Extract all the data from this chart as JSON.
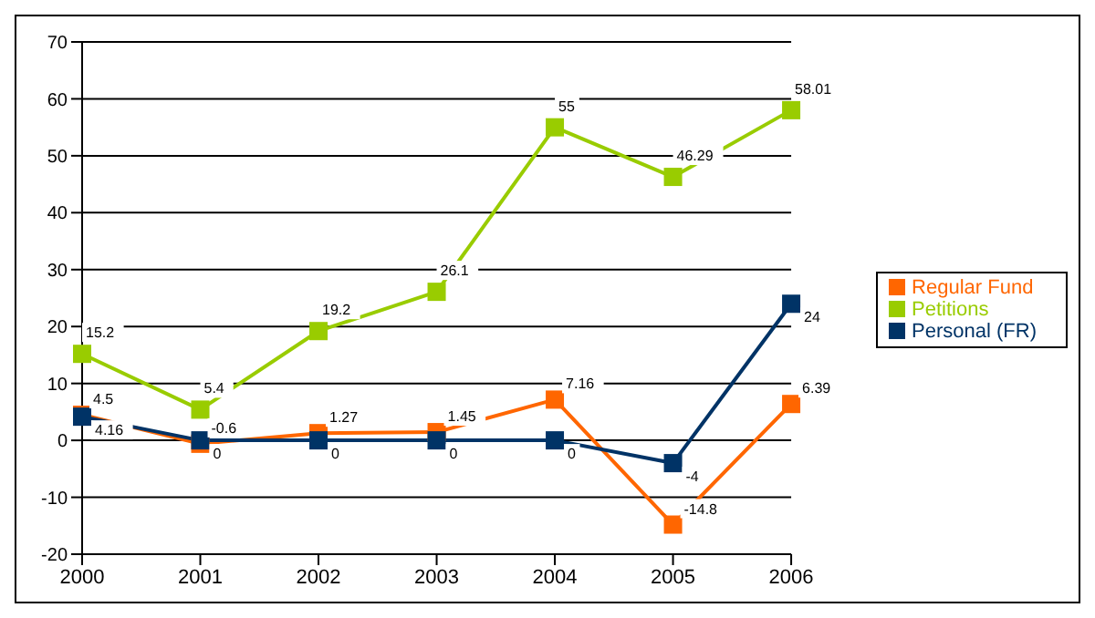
{
  "chart_data": {
    "type": "line",
    "categories": [
      "2000",
      "2001",
      "2002",
      "2003",
      "2004",
      "2005",
      "2006"
    ],
    "series": [
      {
        "name": "Regular Fund",
        "color": "#ff6600",
        "values": [
          4.5,
          -0.6,
          1.27,
          1.45,
          7.16,
          -14.8,
          6.39
        ]
      },
      {
        "name": "Petitions",
        "color": "#99cc00",
        "values": [
          15.2,
          5.4,
          19.2,
          26.1,
          55,
          46.29,
          58.01
        ]
      },
      {
        "name": "Personal (FR)",
        "color": "#003366",
        "values": [
          4.16,
          0,
          0,
          0,
          0,
          -4,
          24
        ]
      }
    ],
    "ylim": [
      -20,
      70
    ],
    "yticks": [
      -20,
      -10,
      0,
      10,
      20,
      30,
      40,
      50,
      60,
      70
    ],
    "grid": "y",
    "legend": "right",
    "marker": "square",
    "line_style": "solid",
    "data_labels": true
  }
}
